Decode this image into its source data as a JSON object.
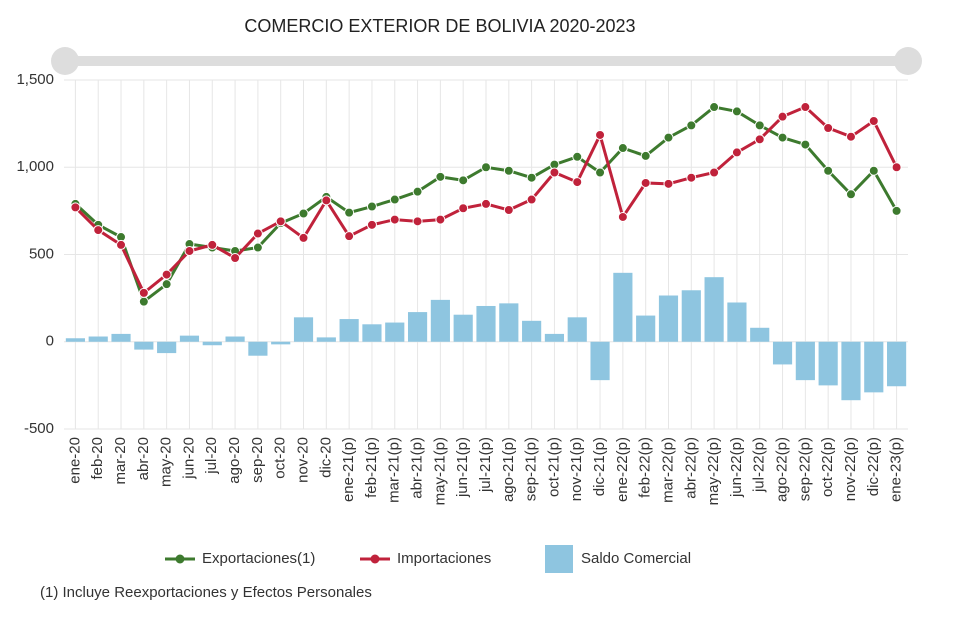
{
  "chart_data": {
    "type": "combo",
    "title": "COMERCIO EXTERIOR DE BOLIVIA 2020-2023",
    "categories": [
      "ene-20",
      "feb-20",
      "mar-20",
      "abr-20",
      "may-20",
      "jun-20",
      "jul-20",
      "ago-20",
      "sep-20",
      "oct-20",
      "nov-20",
      "dic-20",
      "ene-21(p)",
      "feb-21(p)",
      "mar-21(p)",
      "abr-21(p)",
      "may-21(p)",
      "jun-21(p)",
      "jul-21(p)",
      "ago-21(p)",
      "sep-21(p)",
      "oct-21(p)",
      "nov-21(p)",
      "dic-21(p)",
      "ene-22(p)",
      "feb-22(p)",
      "mar-22(p)",
      "abr-22(p)",
      "may-22(p)",
      "jun-22(p)",
      "jul-22(p)",
      "ago-22(p)",
      "sep-22(p)",
      "oct-22(p)",
      "nov-22(p)",
      "dic-22(p)",
      "ene-23(p)"
    ],
    "series": [
      {
        "name": "Exportaciones(1)",
        "type": "line",
        "color": "#3d7a2e",
        "values": [
          790,
          670,
          600,
          230,
          330,
          560,
          540,
          520,
          540,
          680,
          735,
          830,
          740,
          775,
          815,
          860,
          945,
          925,
          1000,
          980,
          940,
          1015,
          1060,
          970,
          1110,
          1065,
          1170,
          1240,
          1345,
          1320,
          1240,
          1170,
          1130,
          980,
          845,
          980,
          750
        ]
      },
      {
        "name": "Importaciones",
        "type": "line",
        "color": "#c0223b",
        "values": [
          770,
          640,
          555,
          280,
          385,
          520,
          555,
          480,
          620,
          690,
          595,
          810,
          605,
          670,
          700,
          690,
          700,
          765,
          790,
          755,
          815,
          970,
          915,
          1185,
          715,
          910,
          905,
          940,
          970,
          1085,
          1160,
          1290,
          1345,
          1225,
          1175,
          1265,
          1000
        ]
      },
      {
        "name": "Saldo Comercial",
        "type": "bar",
        "color": "#8ec5e0",
        "values": [
          20,
          30,
          45,
          -45,
          -65,
          35,
          -20,
          30,
          -80,
          -15,
          140,
          25,
          130,
          100,
          110,
          170,
          240,
          155,
          205,
          220,
          120,
          45,
          140,
          -220,
          395,
          150,
          265,
          295,
          370,
          225,
          80,
          -130,
          -220,
          -250,
          -335,
          -290,
          -255
        ]
      }
    ],
    "ylim": [
      -500,
      1500
    ],
    "yticks": [
      {
        "value": -500,
        "label": "-500"
      },
      0,
      500,
      {
        "value": 1000,
        "label": "1,000"
      },
      {
        "value": 1500,
        "label": "1,500"
      }
    ],
    "grid": true,
    "legend": "bottom",
    "note": "(1) Incluye Reexportaciones y Efectos Personales"
  }
}
